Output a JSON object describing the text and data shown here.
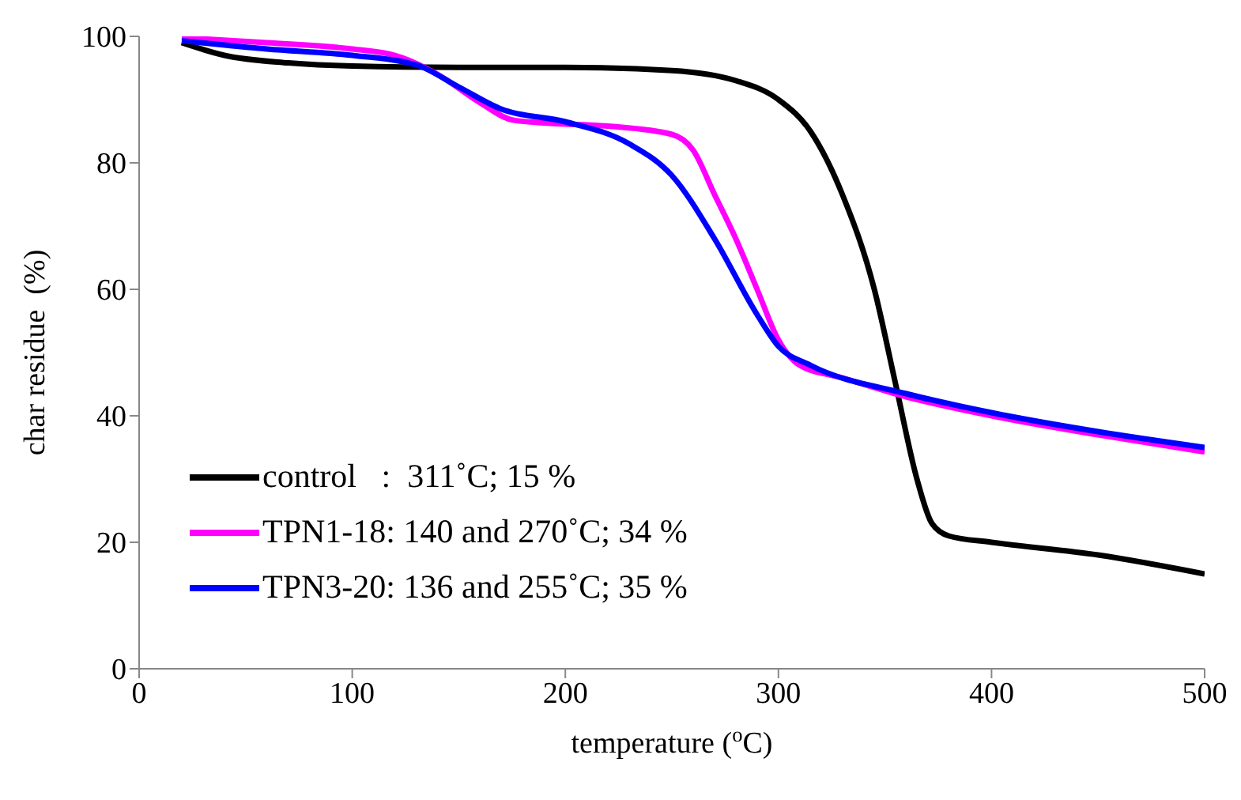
{
  "chart_data": {
    "type": "line",
    "xlabel": "temperature ($^{o}$C)",
    "ylabel": "char residue  (%)",
    "xlim": [
      0,
      500
    ],
    "xticks": [
      0,
      100,
      200,
      300,
      400,
      500
    ],
    "ylim": [
      0,
      100
    ],
    "yticks": [
      0,
      20,
      40,
      60,
      80,
      100
    ],
    "grid": false,
    "legend": "bottom left",
    "marker": "none",
    "line_style": "solid",
    "series": [
      {
        "name": "control   :  311˚C; 15 %",
        "color": "#000000",
        "x": [
          20,
          40,
          70,
          100,
          150,
          200,
          250,
          280,
          300,
          315,
          330,
          345,
          355,
          365,
          372,
          380,
          400,
          450,
          500
        ],
        "values": [
          99,
          97,
          95.8,
          95.3,
          95.1,
          95.1,
          94.6,
          93,
          90,
          85,
          75,
          60,
          45,
          30,
          23,
          21,
          20,
          18,
          15
        ]
      },
      {
        "name": "TPN1-18: 140 and 270˚C; 34 %",
        "color": "#ff00ff",
        "x": [
          20,
          60,
          100,
          120,
          140,
          160,
          175,
          190,
          220,
          250,
          260,
          270,
          280,
          290,
          300,
          310,
          330,
          360,
          400,
          450,
          500
        ],
        "values": [
          99.8,
          99,
          98,
          97,
          94,
          89.5,
          86.8,
          86.3,
          85.8,
          84.5,
          82,
          75,
          68,
          60,
          52,
          48,
          46,
          43,
          40,
          37,
          34.3
        ]
      },
      {
        "name": "TPN3-20: 136 and 255˚C; 35 %",
        "color": "#0000ff",
        "x": [
          20,
          60,
          100,
          130,
          150,
          170,
          200,
          230,
          250,
          270,
          290,
          300,
          315,
          360,
          400,
          450,
          500
        ],
        "values": [
          99.3,
          98,
          97,
          95.5,
          92,
          88.5,
          86.5,
          83,
          78,
          68,
          56,
          51,
          48,
          43.5,
          40.5,
          37.5,
          35
        ]
      }
    ]
  }
}
